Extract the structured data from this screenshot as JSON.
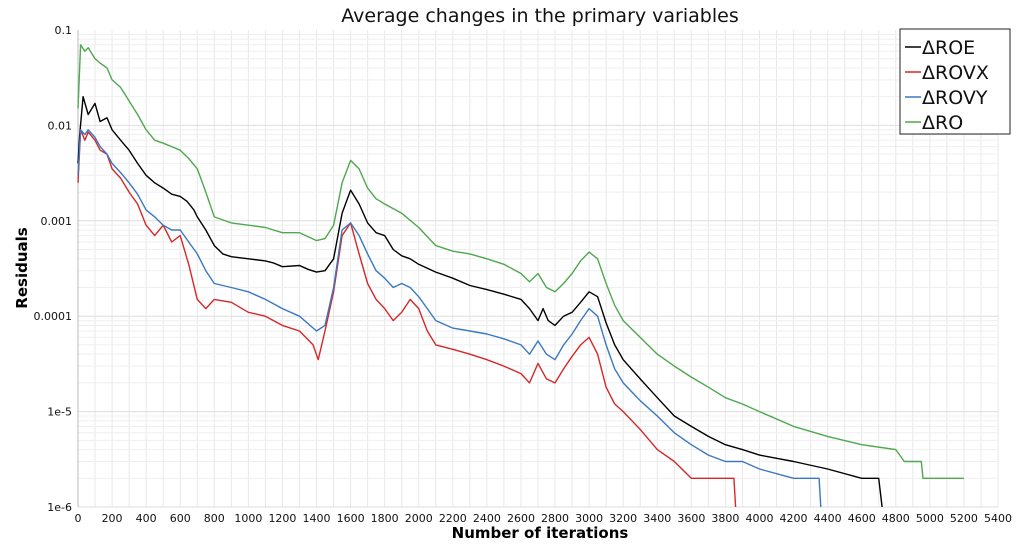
{
  "chart_data": {
    "type": "line",
    "title": "Average changes in the primary variables",
    "xlabel": "Number of iterations",
    "ylabel": "Residuals",
    "xlim": [
      0,
      5400
    ],
    "ylim": [
      1e-06,
      0.1
    ],
    "yscale": "log",
    "grid": true,
    "legend_position": "top-right",
    "x_ticks": [
      "0",
      "200",
      "400",
      "600",
      "800",
      "1000",
      "1200",
      "1400",
      "1600",
      "1800",
      "2000",
      "2200",
      "2400",
      "2600",
      "2800",
      "3000",
      "3200",
      "3400",
      "3600",
      "3800",
      "4000",
      "4200",
      "4400",
      "4600",
      "4800",
      "5000",
      "5200",
      "5400"
    ],
    "y_ticks": [
      "0.1",
      "0.01",
      "0.001",
      "0.0001",
      "1e-5",
      "1e-6"
    ],
    "series": [
      {
        "name": "ΔROE",
        "color": "#000000",
        "points": [
          [
            0,
            0.004
          ],
          [
            10,
            0.008
          ],
          [
            30,
            0.02
          ],
          [
            60,
            0.013
          ],
          [
            100,
            0.017
          ],
          [
            130,
            0.011
          ],
          [
            170,
            0.012
          ],
          [
            200,
            0.009
          ],
          [
            250,
            0.007
          ],
          [
            300,
            0.0055
          ],
          [
            350,
            0.004
          ],
          [
            400,
            0.003
          ],
          [
            450,
            0.0025
          ],
          [
            500,
            0.0022
          ],
          [
            550,
            0.0019
          ],
          [
            600,
            0.0018
          ],
          [
            640,
            0.0016
          ],
          [
            680,
            0.0013
          ],
          [
            700,
            0.0011
          ],
          [
            750,
            0.0008
          ],
          [
            800,
            0.00055
          ],
          [
            850,
            0.00045
          ],
          [
            900,
            0.00042
          ],
          [
            1000,
            0.0004
          ],
          [
            1100,
            0.00038
          ],
          [
            1150,
            0.00036
          ],
          [
            1200,
            0.00033
          ],
          [
            1300,
            0.00034
          ],
          [
            1350,
            0.00031
          ],
          [
            1400,
            0.00029
          ],
          [
            1450,
            0.0003
          ],
          [
            1500,
            0.0004
          ],
          [
            1550,
            0.0012
          ],
          [
            1600,
            0.0021
          ],
          [
            1650,
            0.0015
          ],
          [
            1700,
            0.00095
          ],
          [
            1750,
            0.00075
          ],
          [
            1800,
            0.0007
          ],
          [
            1850,
            0.0005
          ],
          [
            1900,
            0.00043
          ],
          [
            1950,
            0.0004
          ],
          [
            2000,
            0.00035
          ],
          [
            2100,
            0.00029
          ],
          [
            2200,
            0.00025
          ],
          [
            2300,
            0.00021
          ],
          [
            2400,
            0.00019
          ],
          [
            2500,
            0.00017
          ],
          [
            2600,
            0.00015
          ],
          [
            2650,
            0.00012
          ],
          [
            2700,
            9e-05
          ],
          [
            2730,
            0.00012
          ],
          [
            2760,
            9e-05
          ],
          [
            2800,
            8e-05
          ],
          [
            2850,
            0.0001
          ],
          [
            2900,
            0.00011
          ],
          [
            2950,
            0.00014
          ],
          [
            3000,
            0.00018
          ],
          [
            3050,
            0.00016
          ],
          [
            3100,
            8.5e-05
          ],
          [
            3150,
            5e-05
          ],
          [
            3200,
            3.5e-05
          ],
          [
            3300,
            2.2e-05
          ],
          [
            3400,
            1.4e-05
          ],
          [
            3500,
            9e-06
          ],
          [
            3600,
            7e-06
          ],
          [
            3700,
            5.5e-06
          ],
          [
            3800,
            4.5e-06
          ],
          [
            3900,
            4e-06
          ],
          [
            4000,
            3.5e-06
          ],
          [
            4200,
            3e-06
          ],
          [
            4400,
            2.5e-06
          ],
          [
            4600,
            2e-06
          ],
          [
            4700,
            2e-06
          ],
          [
            4720,
            1e-06
          ]
        ]
      },
      {
        "name": "ΔROVX",
        "color": "#d62728",
        "points": [
          [
            0,
            0.0025
          ],
          [
            15,
            0.009
          ],
          [
            40,
            0.007
          ],
          [
            60,
            0.0085
          ],
          [
            100,
            0.007
          ],
          [
            130,
            0.0055
          ],
          [
            170,
            0.005
          ],
          [
            200,
            0.0035
          ],
          [
            250,
            0.0028
          ],
          [
            300,
            0.002
          ],
          [
            350,
            0.0015
          ],
          [
            400,
            0.0009
          ],
          [
            450,
            0.0007
          ],
          [
            500,
            0.0009
          ],
          [
            550,
            0.0006
          ],
          [
            600,
            0.0007
          ],
          [
            650,
            0.00035
          ],
          [
            700,
            0.00015
          ],
          [
            750,
            0.00012
          ],
          [
            800,
            0.00015
          ],
          [
            900,
            0.00014
          ],
          [
            1000,
            0.00011
          ],
          [
            1100,
            0.0001
          ],
          [
            1200,
            8e-05
          ],
          [
            1300,
            7e-05
          ],
          [
            1380,
            5e-05
          ],
          [
            1410,
            3.5e-05
          ],
          [
            1450,
            7e-05
          ],
          [
            1500,
            0.00018
          ],
          [
            1550,
            0.0007
          ],
          [
            1600,
            0.00095
          ],
          [
            1650,
            0.00045
          ],
          [
            1700,
            0.00022
          ],
          [
            1750,
            0.00015
          ],
          [
            1800,
            0.00012
          ],
          [
            1850,
            9e-05
          ],
          [
            1900,
            0.00011
          ],
          [
            1950,
            0.00015
          ],
          [
            2000,
            0.00012
          ],
          [
            2050,
            7e-05
          ],
          [
            2100,
            5e-05
          ],
          [
            2200,
            4.5e-05
          ],
          [
            2300,
            4e-05
          ],
          [
            2400,
            3.5e-05
          ],
          [
            2500,
            3e-05
          ],
          [
            2600,
            2.5e-05
          ],
          [
            2650,
            2e-05
          ],
          [
            2700,
            3.2e-05
          ],
          [
            2750,
            2.2e-05
          ],
          [
            2800,
            2e-05
          ],
          [
            2850,
            2.8e-05
          ],
          [
            2900,
            3.8e-05
          ],
          [
            2950,
            5e-05
          ],
          [
            3000,
            6e-05
          ],
          [
            3050,
            4e-05
          ],
          [
            3100,
            1.8e-05
          ],
          [
            3150,
            1.2e-05
          ],
          [
            3200,
            1e-05
          ],
          [
            3300,
            6.5e-06
          ],
          [
            3400,
            4e-06
          ],
          [
            3500,
            3e-06
          ],
          [
            3600,
            2e-06
          ],
          [
            3700,
            2e-06
          ],
          [
            3800,
            2e-06
          ],
          [
            3850,
            2e-06
          ],
          [
            3860,
            1e-06
          ]
        ]
      },
      {
        "name": "ΔROVY",
        "color": "#3a78c3",
        "points": [
          [
            0,
            0.003
          ],
          [
            15,
            0.009
          ],
          [
            40,
            0.008
          ],
          [
            60,
            0.009
          ],
          [
            100,
            0.0075
          ],
          [
            130,
            0.006
          ],
          [
            170,
            0.005
          ],
          [
            200,
            0.004
          ],
          [
            250,
            0.0032
          ],
          [
            300,
            0.0025
          ],
          [
            350,
            0.0019
          ],
          [
            400,
            0.0013
          ],
          [
            450,
            0.0011
          ],
          [
            500,
            0.0009
          ],
          [
            550,
            0.0008
          ],
          [
            600,
            0.0008
          ],
          [
            650,
            0.0006
          ],
          [
            700,
            0.00045
          ],
          [
            750,
            0.0003
          ],
          [
            800,
            0.00022
          ],
          [
            900,
            0.0002
          ],
          [
            1000,
            0.00018
          ],
          [
            1100,
            0.00015
          ],
          [
            1200,
            0.00012
          ],
          [
            1300,
            0.0001
          ],
          [
            1400,
            7e-05
          ],
          [
            1450,
            8e-05
          ],
          [
            1500,
            0.0002
          ],
          [
            1550,
            0.0008
          ],
          [
            1600,
            0.00095
          ],
          [
            1650,
            0.0007
          ],
          [
            1700,
            0.00045
          ],
          [
            1750,
            0.0003
          ],
          [
            1800,
            0.00025
          ],
          [
            1850,
            0.0002
          ],
          [
            1900,
            0.00022
          ],
          [
            1950,
            0.0002
          ],
          [
            2000,
            0.00016
          ],
          [
            2050,
            0.00012
          ],
          [
            2100,
            9e-05
          ],
          [
            2200,
            7.5e-05
          ],
          [
            2300,
            7e-05
          ],
          [
            2400,
            6.5e-05
          ],
          [
            2500,
            5.8e-05
          ],
          [
            2600,
            5e-05
          ],
          [
            2650,
            4e-05
          ],
          [
            2700,
            5.5e-05
          ],
          [
            2750,
            4e-05
          ],
          [
            2800,
            3.5e-05
          ],
          [
            2850,
            5e-05
          ],
          [
            2900,
            6.5e-05
          ],
          [
            2950,
            9e-05
          ],
          [
            3000,
            0.00012
          ],
          [
            3050,
            0.0001
          ],
          [
            3100,
            5e-05
          ],
          [
            3150,
            2.8e-05
          ],
          [
            3200,
            2e-05
          ],
          [
            3300,
            1.3e-05
          ],
          [
            3400,
            9e-06
          ],
          [
            3500,
            6e-06
          ],
          [
            3600,
            4.5e-06
          ],
          [
            3700,
            3.5e-06
          ],
          [
            3800,
            3e-06
          ],
          [
            3900,
            3e-06
          ],
          [
            4000,
            2.5e-06
          ],
          [
            4200,
            2e-06
          ],
          [
            4350,
            2e-06
          ],
          [
            4360,
            1e-06
          ]
        ]
      },
      {
        "name": "ΔRO",
        "color": "#4ea84e",
        "points": [
          [
            0,
            0.015
          ],
          [
            15,
            0.07
          ],
          [
            40,
            0.06
          ],
          [
            60,
            0.065
          ],
          [
            100,
            0.05
          ],
          [
            130,
            0.045
          ],
          [
            170,
            0.04
          ],
          [
            200,
            0.03
          ],
          [
            250,
            0.025
          ],
          [
            300,
            0.018
          ],
          [
            350,
            0.013
          ],
          [
            400,
            0.009
          ],
          [
            450,
            0.007
          ],
          [
            500,
            0.0065
          ],
          [
            550,
            0.006
          ],
          [
            600,
            0.0055
          ],
          [
            650,
            0.0045
          ],
          [
            700,
            0.0035
          ],
          [
            750,
            0.002
          ],
          [
            800,
            0.0011
          ],
          [
            900,
            0.00095
          ],
          [
            1000,
            0.0009
          ],
          [
            1100,
            0.00085
          ],
          [
            1200,
            0.00075
          ],
          [
            1300,
            0.00075
          ],
          [
            1400,
            0.00062
          ],
          [
            1450,
            0.00065
          ],
          [
            1500,
            0.0009
          ],
          [
            1550,
            0.0025
          ],
          [
            1600,
            0.0043
          ],
          [
            1650,
            0.0035
          ],
          [
            1700,
            0.0022
          ],
          [
            1750,
            0.0017
          ],
          [
            1800,
            0.0015
          ],
          [
            1900,
            0.0012
          ],
          [
            2000,
            0.00085
          ],
          [
            2100,
            0.00055
          ],
          [
            2200,
            0.00048
          ],
          [
            2300,
            0.00045
          ],
          [
            2400,
            0.0004
          ],
          [
            2500,
            0.00035
          ],
          [
            2600,
            0.00028
          ],
          [
            2650,
            0.00023
          ],
          [
            2700,
            0.00028
          ],
          [
            2750,
            0.0002
          ],
          [
            2800,
            0.00018
          ],
          [
            2850,
            0.00022
          ],
          [
            2900,
            0.00028
          ],
          [
            2950,
            0.00038
          ],
          [
            3000,
            0.00047
          ],
          [
            3050,
            0.0004
          ],
          [
            3100,
            0.00022
          ],
          [
            3150,
            0.00013
          ],
          [
            3200,
            9e-05
          ],
          [
            3300,
            6e-05
          ],
          [
            3400,
            4e-05
          ],
          [
            3500,
            3e-05
          ],
          [
            3600,
            2.3e-05
          ],
          [
            3700,
            1.8e-05
          ],
          [
            3800,
            1.4e-05
          ],
          [
            3900,
            1.2e-05
          ],
          [
            4000,
            1e-05
          ],
          [
            4200,
            7e-06
          ],
          [
            4400,
            5.5e-06
          ],
          [
            4600,
            4.5e-06
          ],
          [
            4800,
            4e-06
          ],
          [
            4850,
            3e-06
          ],
          [
            4950,
            3e-06
          ],
          [
            4960,
            2e-06
          ],
          [
            5200,
            2e-06
          ]
        ]
      }
    ]
  }
}
